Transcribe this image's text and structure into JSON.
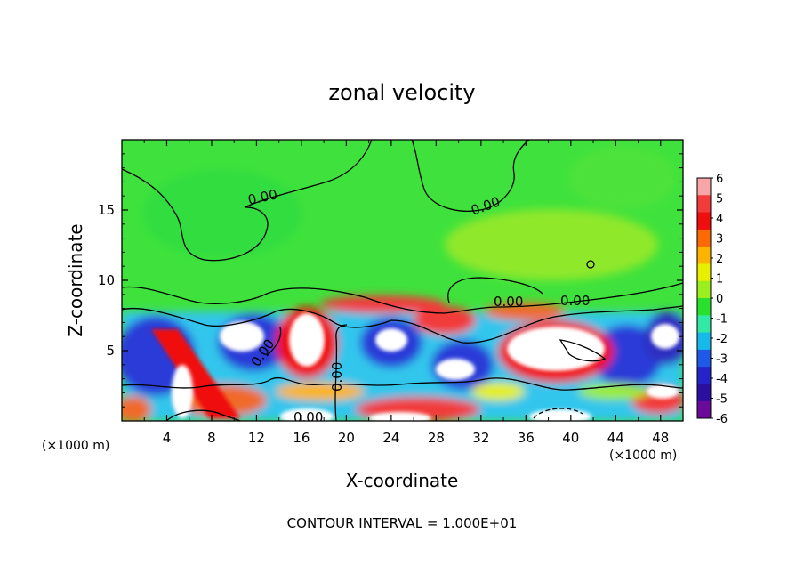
{
  "chart_data": {
    "type": "heatmap",
    "title": "zonal velocity",
    "xlabel": "X-coordinate",
    "ylabel": "Z-coordinate",
    "x_unit": "(×1000 m)",
    "z_unit": "(×1000 m)",
    "xlim": [
      0,
      50
    ],
    "ylim": [
      0,
      20
    ],
    "x_ticks": [
      4,
      8,
      12,
      16,
      20,
      24,
      28,
      32,
      36,
      40,
      44,
      48
    ],
    "y_ticks": [
      5,
      10,
      15
    ],
    "colorbar": {
      "levels": [
        6,
        5,
        4,
        3,
        2,
        1,
        0,
        -1,
        -2,
        -3,
        -4,
        -5,
        -6
      ],
      "colors": [
        "#f6a6a6",
        "#f23b3b",
        "#f00d0d",
        "#fb6a05",
        "#fdb400",
        "#e6f000",
        "#9dee1f",
        "#2ae02e",
        "#32e8a5",
        "#17b8ea",
        "#1f5ae6",
        "#2424c9",
        "#2a0fa0",
        "#6a0a9a"
      ]
    },
    "contour_labels": [
      "0.00",
      "0.00",
      "0.00",
      "0.00",
      "0.00",
      "0.00",
      "0.00"
    ],
    "contour_interval": "CONTOUR INTERVAL = 1.000E+01"
  }
}
